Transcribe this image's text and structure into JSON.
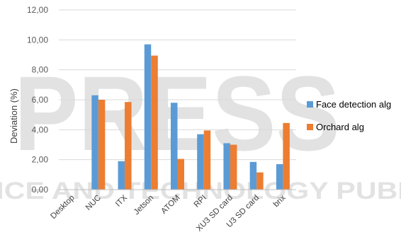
{
  "chart_data": {
    "type": "bar",
    "ylabel": "Deviation (%)",
    "xlabel": "",
    "ylim": [
      0,
      12
    ],
    "yticks": [
      "0,00",
      "2,00",
      "4,00",
      "6,00",
      "8,00",
      "10,00",
      "12,00"
    ],
    "categories": [
      "Desktop",
      "NUC",
      "ITX",
      "Jetson",
      "ATOM",
      "RPI",
      "XU3 SD card",
      "U3 SD card",
      "brix"
    ],
    "series": [
      {
        "name": "Face detection alg",
        "color": "#5b9bd5",
        "values": [
          0,
          6.3,
          1.9,
          9.7,
          5.8,
          3.7,
          3.1,
          1.85,
          1.7
        ]
      },
      {
        "name": "Orchard alg",
        "color": "#ed7d31",
        "values": [
          0,
          6.0,
          5.85,
          8.95,
          2.05,
          3.95,
          3.0,
          1.15,
          4.45
        ]
      }
    ],
    "grid": true,
    "legend_position": "right"
  },
  "watermark": {
    "main": "PRESS",
    "bottom": "SCIENCE AND TECHNOLOGY PUBLICATIONS"
  }
}
